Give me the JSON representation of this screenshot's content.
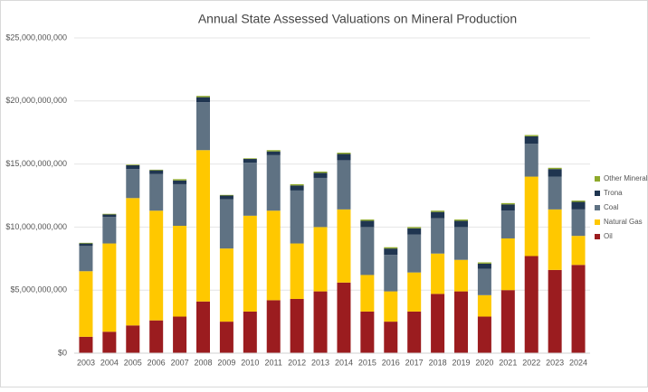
{
  "chart_data": {
    "type": "stacked_bar",
    "title": "Annual State Assessed Valuations on Mineral Production",
    "categories": [
      "2003",
      "2004",
      "2005",
      "2006",
      "2007",
      "2008",
      "2009",
      "2010",
      "2011",
      "2012",
      "2013",
      "2014",
      "2015",
      "2016",
      "2017",
      "2018",
      "2019",
      "2020",
      "2021",
      "2022",
      "2023",
      "2024"
    ],
    "series": [
      {
        "name": "Oil",
        "color": "#9b1c1f",
        "values": [
          1300000000,
          1700000000,
          2200000000,
          2600000000,
          2900000000,
          4100000000,
          2500000000,
          3300000000,
          4200000000,
          4300000000,
          4900000000,
          5600000000,
          3300000000,
          2500000000,
          3300000000,
          4700000000,
          4900000000,
          2900000000,
          5000000000,
          7700000000,
          6600000000,
          7000000000
        ]
      },
      {
        "name": "Natural Gas",
        "color": "#ffc800",
        "values": [
          5200000000,
          7000000000,
          10100000000,
          8700000000,
          7200000000,
          12000000000,
          5800000000,
          7600000000,
          7100000000,
          4400000000,
          5100000000,
          5800000000,
          2900000000,
          2400000000,
          3100000000,
          3200000000,
          2500000000,
          1700000000,
          4100000000,
          6300000000,
          4800000000,
          2300000000
        ]
      },
      {
        "name": "Coal",
        "color": "#5f7283",
        "values": [
          2000000000,
          2100000000,
          2300000000,
          2900000000,
          3300000000,
          3800000000,
          3900000000,
          4200000000,
          4400000000,
          4200000000,
          3900000000,
          3900000000,
          3800000000,
          2900000000,
          3000000000,
          2800000000,
          2600000000,
          2100000000,
          2200000000,
          2600000000,
          2600000000,
          2100000000
        ]
      },
      {
        "name": "Trona",
        "color": "#1f3550",
        "values": [
          200000000,
          200000000,
          300000000,
          300000000,
          300000000,
          400000000,
          300000000,
          300000000,
          300000000,
          400000000,
          400000000,
          500000000,
          500000000,
          500000000,
          500000000,
          500000000,
          500000000,
          400000000,
          500000000,
          600000000,
          600000000,
          600000000
        ]
      },
      {
        "name": "Other Minerals",
        "color": "#8ea92b",
        "values": [
          50000000,
          50000000,
          50000000,
          50000000,
          100000000,
          100000000,
          50000000,
          50000000,
          100000000,
          100000000,
          100000000,
          100000000,
          100000000,
          100000000,
          100000000,
          100000000,
          100000000,
          100000000,
          100000000,
          100000000,
          100000000,
          100000000
        ]
      }
    ],
    "ylim": [
      0,
      25000000000
    ],
    "yticks": [
      {
        "value": 0,
        "label": "$0"
      },
      {
        "value": 5000000000,
        "label": "$5,000,000,000"
      },
      {
        "value": 10000000000,
        "label": "$10,000,000,000"
      },
      {
        "value": 15000000000,
        "label": "$15,000,000,000"
      },
      {
        "value": 20000000000,
        "label": "$20,000,000,000"
      },
      {
        "value": 25000000000,
        "label": "$25,000,000,000"
      }
    ],
    "grid": true,
    "legend": "right"
  }
}
